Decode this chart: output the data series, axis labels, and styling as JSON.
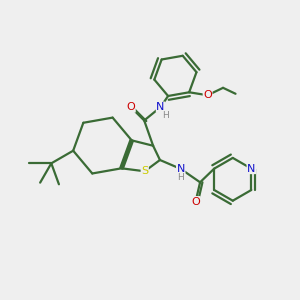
{
  "background_color": "#efefef",
  "bond_color": "#3a6b35",
  "atom_colors": {
    "N": "#1010cc",
    "O": "#cc0000",
    "S": "#cccc00",
    "H": "#888888",
    "C": "#3a6b35"
  },
  "figsize": [
    3.0,
    3.0
  ],
  "dpi": 100
}
